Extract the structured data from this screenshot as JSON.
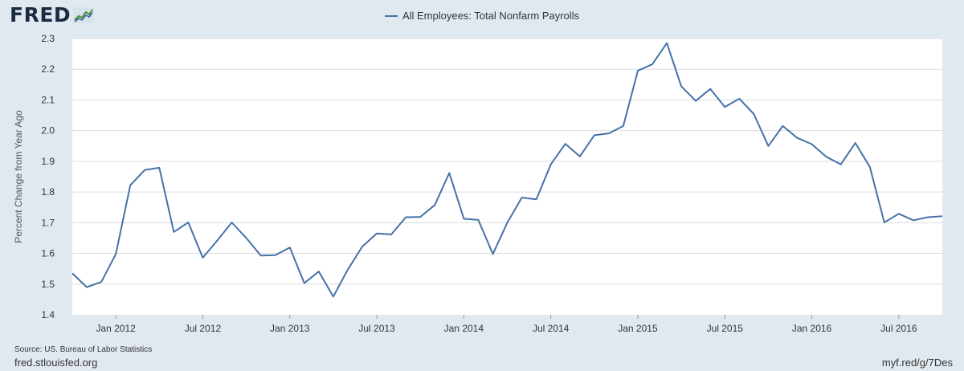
{
  "logo": {
    "text": "FRED",
    "icon": "chart-trend-icon"
  },
  "chart_data": {
    "type": "line",
    "title": "",
    "legend": "top-center",
    "xlabel": "",
    "ylabel": "Percent Change from Year Ago",
    "ylim": [
      1.4,
      2.3
    ],
    "yticks": [
      "1.4",
      "1.5",
      "1.6",
      "1.7",
      "1.8",
      "1.9",
      "2.0",
      "2.1",
      "2.2",
      "2.3"
    ],
    "xlim": [
      "2011-10",
      "2016-10"
    ],
    "xticks": [
      {
        "label": "Jan 2012",
        "month": "2012-01"
      },
      {
        "label": "Jul 2012",
        "month": "2012-07"
      },
      {
        "label": "Jan 2013",
        "month": "2013-01"
      },
      {
        "label": "Jul 2013",
        "month": "2013-07"
      },
      {
        "label": "Jan 2014",
        "month": "2014-01"
      },
      {
        "label": "Jul 2014",
        "month": "2014-07"
      },
      {
        "label": "Jan 2015",
        "month": "2015-01"
      },
      {
        "label": "Jul 2015",
        "month": "2015-07"
      },
      {
        "label": "Jan 2016",
        "month": "2016-01"
      },
      {
        "label": "Jul 2016",
        "month": "2016-07"
      }
    ],
    "grid": true,
    "series": [
      {
        "name": "All Employees: Total Nonfarm Payrolls",
        "color": "#4572a7",
        "x": [
          "2011-10",
          "2011-11",
          "2011-12",
          "2012-01",
          "2012-02",
          "2012-03",
          "2012-04",
          "2012-05",
          "2012-06",
          "2012-07",
          "2012-08",
          "2012-09",
          "2012-10",
          "2012-11",
          "2012-12",
          "2013-01",
          "2013-02",
          "2013-03",
          "2013-04",
          "2013-05",
          "2013-06",
          "2013-07",
          "2013-08",
          "2013-09",
          "2013-10",
          "2013-11",
          "2013-12",
          "2014-01",
          "2014-02",
          "2014-03",
          "2014-04",
          "2014-05",
          "2014-06",
          "2014-07",
          "2014-08",
          "2014-09",
          "2014-10",
          "2014-11",
          "2014-12",
          "2015-01",
          "2015-02",
          "2015-03",
          "2015-04",
          "2015-05",
          "2015-06",
          "2015-07",
          "2015-08",
          "2015-09",
          "2015-10",
          "2015-11",
          "2015-12",
          "2016-01",
          "2016-02",
          "2016-03",
          "2016-04",
          "2016-05",
          "2016-06",
          "2016-07",
          "2016-08",
          "2016-09",
          "2016-10"
        ],
        "values": [
          1.535,
          1.49,
          1.507,
          1.598,
          1.822,
          1.872,
          1.879,
          1.67,
          1.701,
          1.586,
          1.642,
          1.701,
          1.65,
          1.593,
          1.594,
          1.619,
          1.503,
          1.541,
          1.459,
          1.547,
          1.622,
          1.665,
          1.662,
          1.718,
          1.719,
          1.758,
          1.862,
          1.713,
          1.709,
          1.598,
          1.7,
          1.782,
          1.776,
          1.89,
          1.957,
          1.916,
          1.985,
          1.991,
          2.015,
          2.195,
          2.216,
          2.285,
          2.144,
          2.097,
          2.136,
          2.077,
          2.104,
          2.054,
          1.95,
          2.015,
          1.976,
          1.956,
          1.915,
          1.89,
          1.96,
          1.882,
          1.701,
          1.729,
          1.708,
          1.718,
          1.721
        ]
      }
    ]
  },
  "footer": {
    "source": "Source: US. Bureau of Labor Statistics",
    "site": "fred.stlouisfed.org",
    "short_url": "myf.red/g/7Des"
  }
}
